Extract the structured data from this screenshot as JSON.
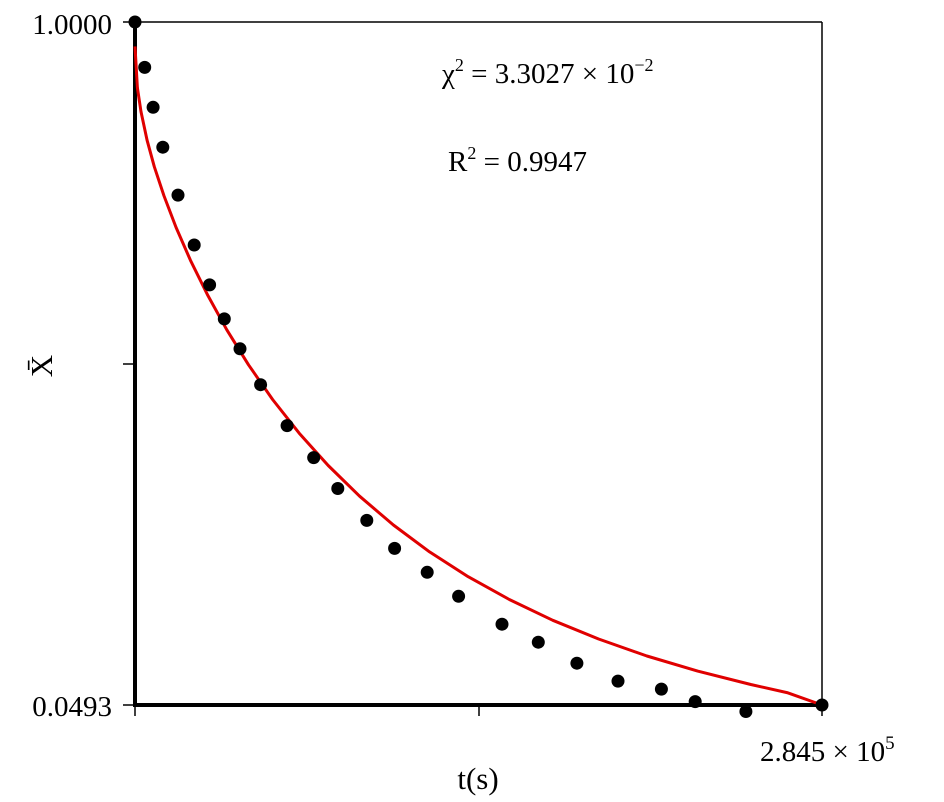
{
  "chart_data": {
    "type": "scatter",
    "title": "",
    "xlabel": "t(s)",
    "ylabel": "X̄",
    "xlim": [
      0,
      284500
    ],
    "ylim": [
      0.0493,
      1.0
    ],
    "x_tick_labels": {
      "max": "2.845 × 10",
      "max_exp": "5"
    },
    "y_tick_labels": {
      "min": "0.0493",
      "max": "1.0000"
    },
    "annotations": {
      "chi_base": "χ",
      "chi_sup": "2",
      "chi_value": " = 3.3027 × 10",
      "chi_exp": "−2",
      "r_base": "R",
      "r_sup": "2",
      "r_value": " = 0.9947"
    },
    "grid": false,
    "colors": {
      "points": "#000000",
      "fit_line": "#e00000"
    },
    "series": [
      {
        "kind": "points",
        "x": [
          0,
          4000,
          7500,
          11500,
          17800,
          24500,
          30900,
          37000,
          43500,
          52000,
          63000,
          74000,
          84000,
          96000,
          107500,
          121000,
          134000,
          152000,
          167000,
          183000,
          200000,
          218000,
          232000,
          253000,
          284500
        ],
        "y": [
          1.0,
          0.9368,
          0.8812,
          0.8257,
          0.759,
          0.6896,
          0.634,
          0.5868,
          0.5451,
          0.4951,
          0.4382,
          0.3937,
          0.3507,
          0.3062,
          0.2673,
          0.234,
          0.2006,
          0.1617,
          0.1367,
          0.1075,
          0.0825,
          0.0714,
          0.0541,
          0.0403,
          0.0493
        ]
      },
      {
        "kind": "fit",
        "x": [
          0,
          1000,
          2500,
          5000,
          8000,
          12000,
          17000,
          23000,
          30000,
          38000,
          47000,
          57000,
          68000,
          80000,
          93000,
          107000,
          122000,
          138000,
          155000,
          173000,
          192000,
          212000,
          233000,
          255000,
          270000,
          284500
        ],
        "y": [
          0.966,
          0.9083,
          0.8751,
          0.8354,
          0.7986,
          0.7579,
          0.714,
          0.6681,
          0.6206,
          0.5716,
          0.5229,
          0.4746,
          0.4277,
          0.3827,
          0.34,
          0.2998,
          0.2624,
          0.2279,
          0.1962,
          0.1672,
          0.1411,
          0.1175,
          0.0965,
          0.0778,
          0.0665,
          0.0493
        ]
      }
    ]
  }
}
